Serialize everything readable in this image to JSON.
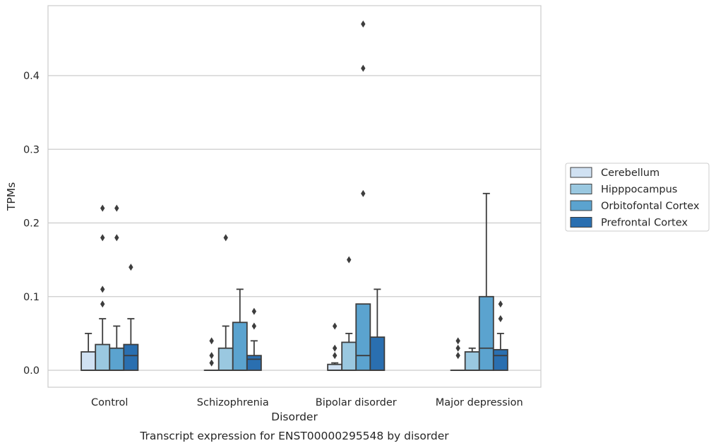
{
  "chart_data": {
    "type": "boxplot",
    "xlabel": "Disorder",
    "ylabel": "TPMs",
    "caption": "Transcript expression for ENST00000295548 by disorder",
    "categories": [
      "Control",
      "Schizophrenia",
      "Bipolar disorder",
      "Major depression"
    ],
    "ylim": [
      -0.023,
      0.495
    ],
    "yticks": [
      0.0,
      0.1,
      0.2,
      0.3,
      0.4
    ],
    "ytick_labels": [
      "0.0",
      "0.1",
      "0.2",
      "0.3",
      "0.4"
    ],
    "grid": "horizontal",
    "legend_position": "right",
    "series": [
      {
        "name": "Cerebellum",
        "color": "#d0e1f2",
        "boxes": [
          {
            "q1": 0.0,
            "median": 0.0,
            "q3": 0.025,
            "whisker_low": 0.0,
            "whisker_high": 0.05,
            "outliers": []
          },
          {
            "q1": 0.0,
            "median": 0.0,
            "q3": 0.0,
            "whisker_low": 0.0,
            "whisker_high": 0.0,
            "outliers": [
              0.01,
              0.02,
              0.04
            ]
          },
          {
            "q1": 0.0,
            "median": 0.0,
            "q3": 0.008,
            "whisker_low": 0.0,
            "whisker_high": 0.01,
            "outliers": [
              0.02,
              0.03,
              0.06
            ]
          },
          {
            "q1": 0.0,
            "median": 0.0,
            "q3": 0.0,
            "whisker_low": 0.0,
            "whisker_high": 0.0,
            "outliers": [
              0.02,
              0.03,
              0.04
            ]
          }
        ]
      },
      {
        "name": "Hipppocampus",
        "color": "#9ac8e0",
        "boxes": [
          {
            "q1": 0.0,
            "median": 0.0,
            "q3": 0.035,
            "whisker_low": 0.0,
            "whisker_high": 0.07,
            "outliers": [
              0.09,
              0.11,
              0.18,
              0.22
            ]
          },
          {
            "q1": 0.0,
            "median": 0.0,
            "q3": 0.03,
            "whisker_low": 0.0,
            "whisker_high": 0.06,
            "outliers": [
              0.18
            ]
          },
          {
            "q1": 0.0,
            "median": 0.0,
            "q3": 0.038,
            "whisker_low": 0.0,
            "whisker_high": 0.05,
            "outliers": [
              0.15
            ]
          },
          {
            "q1": 0.0,
            "median": 0.0,
            "q3": 0.025,
            "whisker_low": 0.0,
            "whisker_high": 0.03,
            "outliers": []
          }
        ]
      },
      {
        "name": "Orbitofontal Cortex",
        "color": "#5ba3cf",
        "boxes": [
          {
            "q1": 0.0,
            "median": 0.0,
            "q3": 0.03,
            "whisker_low": 0.0,
            "whisker_high": 0.06,
            "outliers": [
              0.18,
              0.22
            ]
          },
          {
            "q1": 0.0,
            "median": 0.0,
            "q3": 0.065,
            "whisker_low": 0.0,
            "whisker_high": 0.11,
            "outliers": []
          },
          {
            "q1": 0.0,
            "median": 0.02,
            "q3": 0.09,
            "whisker_low": 0.0,
            "whisker_high": 0.09,
            "outliers": [
              0.24,
              0.41,
              0.47
            ]
          },
          {
            "q1": 0.0,
            "median": 0.03,
            "q3": 0.1,
            "whisker_low": 0.0,
            "whisker_high": 0.24,
            "outliers": []
          }
        ]
      },
      {
        "name": "Prefrontal Cortex",
        "color": "#2a6fb0",
        "boxes": [
          {
            "q1": 0.0,
            "median": 0.02,
            "q3": 0.035,
            "whisker_low": 0.0,
            "whisker_high": 0.07,
            "outliers": [
              0.14
            ]
          },
          {
            "q1": 0.0,
            "median": 0.015,
            "q3": 0.02,
            "whisker_low": 0.0,
            "whisker_high": 0.04,
            "outliers": [
              0.06,
              0.08
            ]
          },
          {
            "q1": 0.0,
            "median": 0.0,
            "q3": 0.045,
            "whisker_low": 0.0,
            "whisker_high": 0.11,
            "outliers": []
          },
          {
            "q1": 0.0,
            "median": 0.02,
            "q3": 0.028,
            "whisker_low": 0.0,
            "whisker_high": 0.05,
            "outliers": [
              0.07,
              0.09
            ]
          }
        ]
      }
    ]
  }
}
